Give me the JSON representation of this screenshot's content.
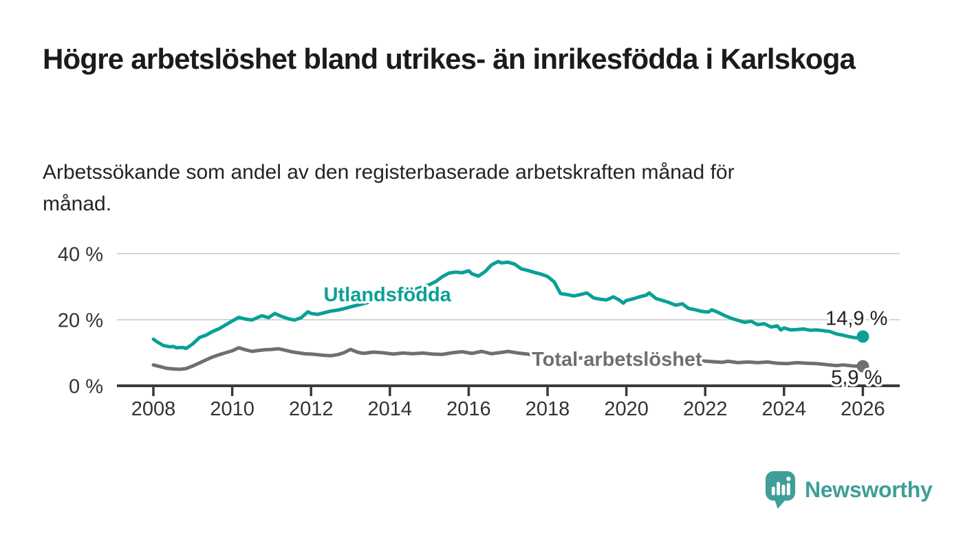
{
  "header": {
    "title": "Högre arbetslöshet bland utrikes- än inrikesfödda i Karlskoga",
    "subtitle": "Arbetssökande som andel av den registerbaserade arbetskraften månad för månad."
  },
  "footer": {
    "brand": "Newsworthy",
    "logo_icon": "speech-bubble-with-bar-chart"
  },
  "colors": {
    "accent_teal": "#0aa096",
    "series_gray": "#6f6f6f",
    "logo_teal": "#3f9e97",
    "axis": "#3a3a3a",
    "gridline": "#cccccc",
    "text_dark": "#222222",
    "tick_text": "#333333"
  },
  "chart_data": {
    "type": "line",
    "title": "",
    "xlabel": "",
    "ylabel": "",
    "grid": "horizontal-only",
    "legend_position": "inline-labels",
    "x_axis": {
      "range_years": [
        2007.1,
        2026.9
      ],
      "ticks": [
        {
          "year": 2008,
          "label": "2008"
        },
        {
          "year": 2010,
          "label": "2010"
        },
        {
          "year": 2012,
          "label": "2012"
        },
        {
          "year": 2014,
          "label": "2014"
        },
        {
          "year": 2016,
          "label": "2016"
        },
        {
          "year": 2018,
          "label": "2018"
        },
        {
          "year": 2020,
          "label": "2020"
        },
        {
          "year": 2022,
          "label": "2022"
        },
        {
          "year": 2024,
          "label": "2024"
        },
        {
          "year": 2026,
          "label": "2026"
        }
      ]
    },
    "y_axis": {
      "unit": "%",
      "range": [
        0,
        42
      ],
      "ticks": [
        {
          "value": 0,
          "label": "0 %"
        },
        {
          "value": 20,
          "label": "20 %"
        },
        {
          "value": 40,
          "label": "40 %"
        }
      ]
    },
    "series": [
      {
        "name": "Utlandsfödda",
        "color": "#0aa096",
        "line_width": 5,
        "end_label": "14,9 %",
        "end_value": 14.9,
        "inline_label": {
          "text": "Utlandsfödda",
          "x_year": 2012.32,
          "y_value": 25.6,
          "anchor": "start"
        },
        "end_label_offset": [
          36,
          -17
        ],
        "points": [
          [
            2008.0,
            14.1
          ],
          [
            2008.08,
            13.4
          ],
          [
            2008.25,
            12.2
          ],
          [
            2008.42,
            11.8
          ],
          [
            2008.5,
            11.9
          ],
          [
            2008.58,
            11.5
          ],
          [
            2008.75,
            11.6
          ],
          [
            2008.83,
            11.3
          ],
          [
            2009.0,
            12.7
          ],
          [
            2009.17,
            14.6
          ],
          [
            2009.33,
            15.3
          ],
          [
            2009.5,
            16.4
          ],
          [
            2009.67,
            17.3
          ],
          [
            2009.83,
            18.4
          ],
          [
            2010.0,
            19.6
          ],
          [
            2010.17,
            20.7
          ],
          [
            2010.33,
            20.2
          ],
          [
            2010.5,
            19.9
          ],
          [
            2010.67,
            20.8
          ],
          [
            2010.75,
            21.2
          ],
          [
            2010.92,
            20.6
          ],
          [
            2011.08,
            21.9
          ],
          [
            2011.25,
            21.0
          ],
          [
            2011.42,
            20.3
          ],
          [
            2011.58,
            19.9
          ],
          [
            2011.75,
            20.6
          ],
          [
            2011.92,
            22.4
          ],
          [
            2012.0,
            21.9
          ],
          [
            2012.17,
            21.6
          ],
          [
            2012.33,
            22.1
          ],
          [
            2012.5,
            22.6
          ],
          [
            2012.67,
            22.9
          ],
          [
            2012.83,
            23.3
          ],
          [
            2013.0,
            23.9
          ],
          [
            2013.25,
            24.6
          ],
          [
            2013.5,
            25.4
          ],
          [
            2013.75,
            26.2
          ],
          [
            2014.0,
            27.0
          ],
          [
            2014.25,
            27.9
          ],
          [
            2014.5,
            28.7
          ],
          [
            2014.75,
            29.6
          ],
          [
            2015.0,
            30.6
          ],
          [
            2015.17,
            31.6
          ],
          [
            2015.33,
            33.0
          ],
          [
            2015.5,
            34.1
          ],
          [
            2015.67,
            34.4
          ],
          [
            2015.83,
            34.2
          ],
          [
            2016.0,
            34.8
          ],
          [
            2016.08,
            33.9
          ],
          [
            2016.25,
            33.2
          ],
          [
            2016.42,
            34.6
          ],
          [
            2016.58,
            36.6
          ],
          [
            2016.75,
            37.6
          ],
          [
            2016.83,
            37.2
          ],
          [
            2017.0,
            37.4
          ],
          [
            2017.17,
            36.8
          ],
          [
            2017.33,
            35.4
          ],
          [
            2017.5,
            34.9
          ],
          [
            2017.67,
            34.3
          ],
          [
            2017.83,
            33.8
          ],
          [
            2018.0,
            33.1
          ],
          [
            2018.17,
            31.4
          ],
          [
            2018.33,
            27.9
          ],
          [
            2018.5,
            27.6
          ],
          [
            2018.67,
            27.2
          ],
          [
            2018.83,
            27.6
          ],
          [
            2019.0,
            28.1
          ],
          [
            2019.17,
            26.6
          ],
          [
            2019.33,
            26.2
          ],
          [
            2019.5,
            26.0
          ],
          [
            2019.67,
            26.9
          ],
          [
            2019.83,
            25.9
          ],
          [
            2019.92,
            25.0
          ],
          [
            2020.0,
            25.8
          ],
          [
            2020.17,
            26.3
          ],
          [
            2020.33,
            26.9
          ],
          [
            2020.5,
            27.4
          ],
          [
            2020.58,
            28.1
          ],
          [
            2020.75,
            26.4
          ],
          [
            2020.92,
            25.8
          ],
          [
            2021.08,
            25.2
          ],
          [
            2021.25,
            24.4
          ],
          [
            2021.42,
            24.8
          ],
          [
            2021.58,
            23.4
          ],
          [
            2021.75,
            23.0
          ],
          [
            2021.92,
            22.5
          ],
          [
            2022.08,
            22.3
          ],
          [
            2022.17,
            23.0
          ],
          [
            2022.33,
            22.2
          ],
          [
            2022.5,
            21.2
          ],
          [
            2022.67,
            20.4
          ],
          [
            2022.83,
            19.8
          ],
          [
            2023.0,
            19.2
          ],
          [
            2023.17,
            19.5
          ],
          [
            2023.33,
            18.5
          ],
          [
            2023.5,
            18.8
          ],
          [
            2023.67,
            17.8
          ],
          [
            2023.83,
            18.1
          ],
          [
            2023.92,
            16.9
          ],
          [
            2024.0,
            17.5
          ],
          [
            2024.17,
            16.9
          ],
          [
            2024.33,
            17.0
          ],
          [
            2024.5,
            17.2
          ],
          [
            2024.67,
            16.8
          ],
          [
            2024.83,
            16.9
          ],
          [
            2025.0,
            16.7
          ],
          [
            2025.17,
            16.4
          ],
          [
            2025.33,
            15.7
          ],
          [
            2025.5,
            15.3
          ],
          [
            2025.67,
            14.8
          ],
          [
            2025.83,
            14.5
          ],
          [
            2026.0,
            14.9
          ]
        ]
      },
      {
        "name": "Total arbetslöshet",
        "color": "#6f6f6f",
        "line_width": 5,
        "end_label": "5,9 %",
        "end_value": 5.9,
        "inline_label": {
          "text": "Total arbetslöshet",
          "x_year": 2017.6,
          "y_value": 6.0,
          "anchor": "start"
        },
        "end_label_offset": [
          28,
          26
        ],
        "points": [
          [
            2008.0,
            6.3
          ],
          [
            2008.17,
            5.8
          ],
          [
            2008.33,
            5.3
          ],
          [
            2008.5,
            5.1
          ],
          [
            2008.67,
            5.0
          ],
          [
            2008.83,
            5.2
          ],
          [
            2009.0,
            6.0
          ],
          [
            2009.17,
            6.9
          ],
          [
            2009.33,
            7.8
          ],
          [
            2009.5,
            8.7
          ],
          [
            2009.67,
            9.4
          ],
          [
            2009.83,
            10.0
          ],
          [
            2010.0,
            10.6
          ],
          [
            2010.17,
            11.5
          ],
          [
            2010.33,
            10.9
          ],
          [
            2010.5,
            10.4
          ],
          [
            2010.67,
            10.7
          ],
          [
            2010.83,
            10.9
          ],
          [
            2011.0,
            11.0
          ],
          [
            2011.17,
            11.2
          ],
          [
            2011.33,
            10.8
          ],
          [
            2011.5,
            10.3
          ],
          [
            2011.67,
            10.0
          ],
          [
            2011.83,
            9.7
          ],
          [
            2012.0,
            9.6
          ],
          [
            2012.17,
            9.4
          ],
          [
            2012.33,
            9.2
          ],
          [
            2012.5,
            9.1
          ],
          [
            2012.67,
            9.4
          ],
          [
            2012.83,
            10.0
          ],
          [
            2013.0,
            11.0
          ],
          [
            2013.17,
            10.2
          ],
          [
            2013.33,
            9.8
          ],
          [
            2013.58,
            10.2
          ],
          [
            2013.83,
            10.0
          ],
          [
            2014.08,
            9.6
          ],
          [
            2014.33,
            9.9
          ],
          [
            2014.58,
            9.7
          ],
          [
            2014.83,
            9.9
          ],
          [
            2015.08,
            9.6
          ],
          [
            2015.33,
            9.5
          ],
          [
            2015.58,
            10.0
          ],
          [
            2015.83,
            10.3
          ],
          [
            2016.08,
            9.8
          ],
          [
            2016.33,
            10.4
          ],
          [
            2016.58,
            9.7
          ],
          [
            2016.83,
            10.1
          ],
          [
            2017.0,
            10.4
          ],
          [
            2017.25,
            9.9
          ],
          [
            2017.5,
            9.6
          ],
          [
            2017.75,
            9.0
          ],
          [
            2018.0,
            8.8
          ],
          [
            2018.33,
            8.5
          ],
          [
            2018.67,
            8.3
          ],
          [
            2019.0,
            8.5
          ],
          [
            2019.33,
            8.1
          ],
          [
            2019.67,
            8.0
          ],
          [
            2020.0,
            8.3
          ],
          [
            2020.33,
            9.2
          ],
          [
            2020.58,
            9.4
          ],
          [
            2020.83,
            8.9
          ],
          [
            2021.17,
            8.4
          ],
          [
            2021.5,
            8.0
          ],
          [
            2021.83,
            7.6
          ],
          [
            2022.17,
            7.3
          ],
          [
            2022.42,
            7.1
          ],
          [
            2022.58,
            7.4
          ],
          [
            2022.83,
            7.0
          ],
          [
            2023.08,
            7.2
          ],
          [
            2023.33,
            7.0
          ],
          [
            2023.58,
            7.2
          ],
          [
            2023.83,
            6.8
          ],
          [
            2024.08,
            6.7
          ],
          [
            2024.33,
            7.0
          ],
          [
            2024.58,
            6.8
          ],
          [
            2024.83,
            6.7
          ],
          [
            2025.08,
            6.4
          ],
          [
            2025.33,
            6.1
          ],
          [
            2025.5,
            6.3
          ],
          [
            2025.75,
            6.0
          ],
          [
            2026.0,
            5.9
          ]
        ]
      }
    ]
  }
}
